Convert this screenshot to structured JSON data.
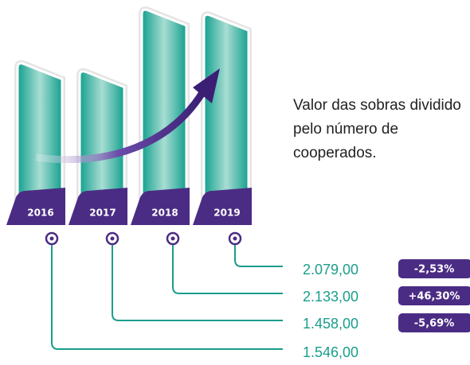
{
  "chart_data": {
    "type": "bar",
    "categories": [
      "2016",
      "2017",
      "2018",
      "2019"
    ],
    "values": [
      1546,
      1458,
      2133,
      2079
    ],
    "value_labels": [
      "1.546,00",
      "1.458,00",
      "2.133,00",
      "2.079,00"
    ],
    "changes": [
      null,
      -5.69,
      46.3,
      -2.53
    ],
    "change_labels": [
      null,
      "-5,69%",
      "+46,30%",
      "-2,53%"
    ],
    "annotation": "Valor das sobras dividido pelo número de cooperados.",
    "color": "#1a9e8c",
    "accent_color": "#4b2c84"
  }
}
